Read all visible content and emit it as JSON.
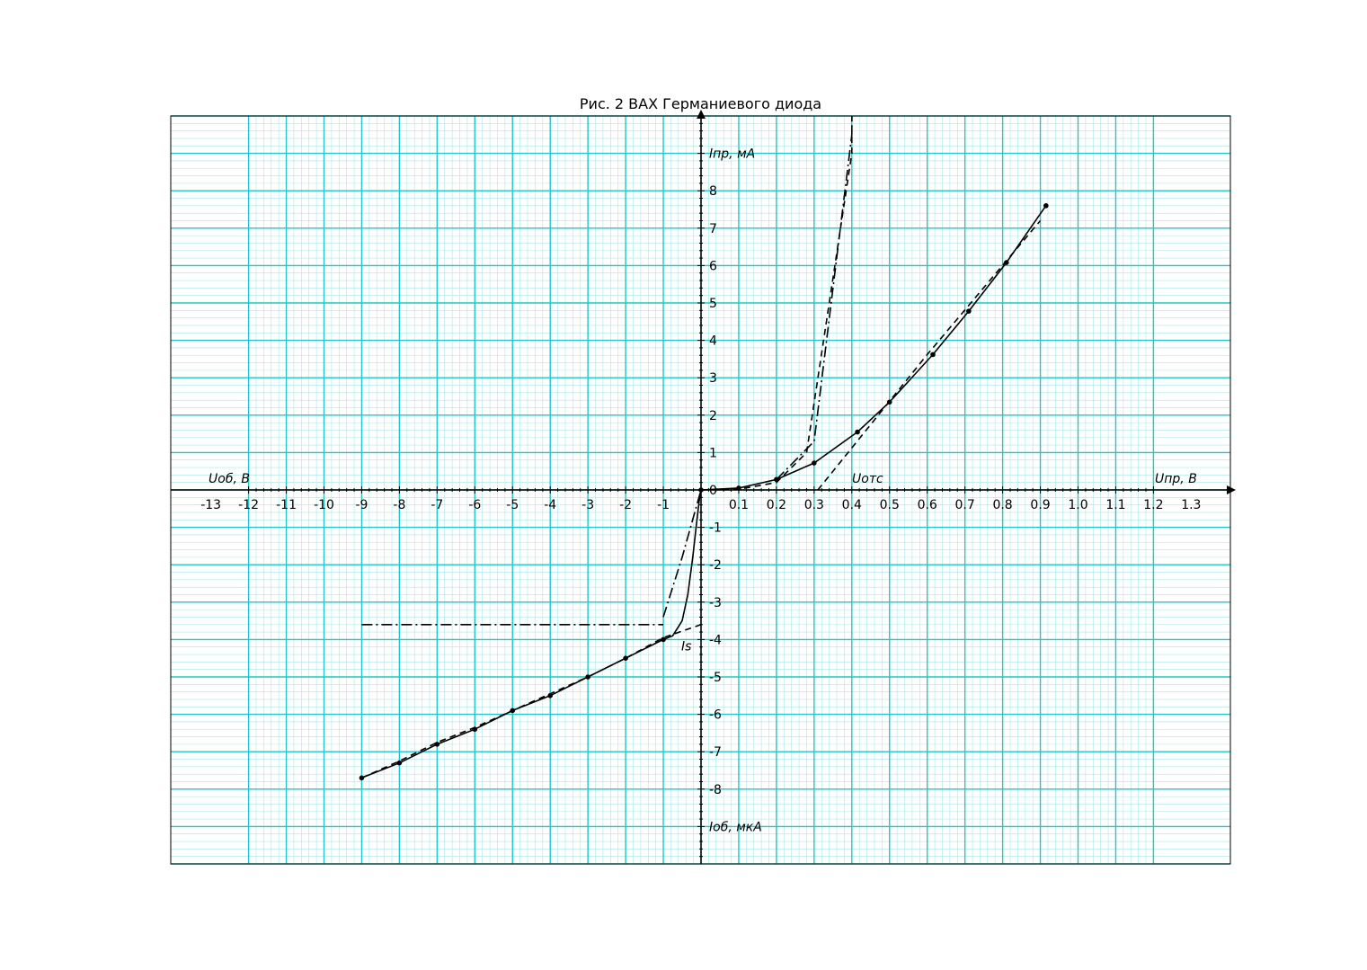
{
  "chart_data": {
    "type": "line",
    "title": "Рис. 2 ВАХ Германиевого диода",
    "grid": true,
    "colors": {
      "grid_major": "#1ec8c8",
      "grid_minor": "#a8e8e8",
      "ink": "#000000"
    },
    "axes": {
      "forward_x": {
        "label": "Uпр, В",
        "range": [
          0,
          1.4
        ],
        "ticks": [
          0.1,
          0.2,
          0.3,
          0.4,
          0.5,
          0.6,
          0.7,
          0.8,
          0.9,
          1.0,
          1.1,
          1.2,
          1.3
        ],
        "tick_labels": [
          "0.1",
          "0.2",
          "0.3",
          "0.4",
          "0.5",
          "0.6",
          "0.7",
          "0.8",
          "0.9",
          "1.0",
          "1.1",
          "1.2",
          "1.3"
        ]
      },
      "reverse_x": {
        "label": "Uоб, В",
        "range": [
          -14,
          0
        ],
        "ticks": [
          -13,
          -12,
          -11,
          -10,
          -9,
          -8,
          -7,
          -6,
          -5,
          -4,
          -3,
          -2,
          -1
        ],
        "tick_labels": [
          "-13",
          "-12",
          "-11",
          "-10",
          "-9",
          "-8",
          "-7",
          "-6",
          "-5",
          "-4",
          "-3",
          "-2",
          "-1"
        ]
      },
      "forward_y": {
        "label": "Iпр, мА",
        "range": [
          0,
          10
        ],
        "ticks": [
          0,
          1,
          2,
          3,
          4,
          5,
          6,
          7,
          8
        ],
        "tick_labels": [
          "0",
          "1",
          "2",
          "3",
          "4",
          "5",
          "6",
          "7",
          "8"
        ]
      },
      "reverse_y": {
        "label": "Iоб, мкА",
        "range": [
          -10,
          0
        ],
        "ticks": [
          -1,
          -2,
          -3,
          -4,
          -5,
          -6,
          -7,
          -8
        ],
        "tick_labels": [
          "-1",
          "-2",
          "-3",
          "-4",
          "-5",
          "-6",
          "-7",
          "-8"
        ]
      }
    },
    "annotations": {
      "cutoff": "Uотс",
      "saturation": "Is"
    },
    "series": [
      {
        "style": "solid-markers",
        "forward": [
          [
            0,
            0
          ],
          [
            0.1,
            0.05
          ],
          [
            0.2,
            0.28
          ],
          [
            0.3,
            0.72
          ],
          [
            0.415,
            1.55
          ],
          [
            0.5,
            2.35
          ],
          [
            0.615,
            3.62
          ],
          [
            0.71,
            4.78
          ],
          [
            0.81,
            6.08
          ],
          [
            0.915,
            7.6
          ]
        ],
        "reverse": [
          [
            -9,
            -7.7
          ],
          [
            -8,
            -7.3
          ],
          [
            -7,
            -6.8
          ],
          [
            -6,
            -6.4
          ],
          [
            -5,
            -5.9
          ],
          [
            -4,
            -5.5
          ],
          [
            -3,
            -5.0
          ],
          [
            -2,
            -4.5
          ],
          [
            -1,
            -4.0
          ]
        ]
      },
      {
        "style": "solid-curve",
        "reverse": [
          [
            -1,
            -4.0
          ],
          [
            -0.75,
            -3.9
          ],
          [
            -0.5,
            -3.5
          ],
          [
            -0.35,
            -2.8
          ],
          [
            -0.22,
            -1.8
          ],
          [
            -0.12,
            -0.9
          ],
          [
            -0.05,
            -0.3
          ],
          [
            0,
            0
          ]
        ]
      },
      {
        "style": "dashed",
        "forward": [
          [
            0,
            0
          ],
          [
            0.1,
            0.02
          ],
          [
            0.2,
            0.2
          ],
          [
            0.28,
            1.0
          ],
          [
            0.4,
            9.0
          ],
          [
            0.4,
            10
          ]
        ],
        "forward_tangent": [
          [
            0.31,
            0
          ],
          [
            0.6,
            3.62
          ],
          [
            0.9,
            7.2
          ]
        ],
        "forward_extra": [
          [
            0.28,
            0
          ],
          [
            0.28,
            0.03
          ]
        ],
        "reverse": [
          [
            -9,
            -7.7
          ],
          [
            -8,
            -7.25
          ],
          [
            -7,
            -6.75
          ],
          [
            -6,
            -6.35
          ],
          [
            -5,
            -5.9
          ],
          [
            -4,
            -5.45
          ],
          [
            -3,
            -5.0
          ],
          [
            -2,
            -4.5
          ],
          [
            -1,
            -3.95
          ],
          [
            0,
            -3.6
          ]
        ]
      },
      {
        "style": "dash-dot",
        "forward": [
          [
            0.2,
            0.28
          ],
          [
            0.3,
            1.3
          ],
          [
            0.4,
            9.5
          ],
          [
            0.4,
            10
          ]
        ],
        "reverse_saturation": [
          [
            -9,
            -3.6
          ],
          [
            -1,
            -3.6
          ]
        ],
        "reverse": [
          [
            -1,
            -3.4
          ],
          [
            -0.5,
            -1.8
          ],
          [
            0,
            0
          ]
        ]
      }
    ]
  }
}
